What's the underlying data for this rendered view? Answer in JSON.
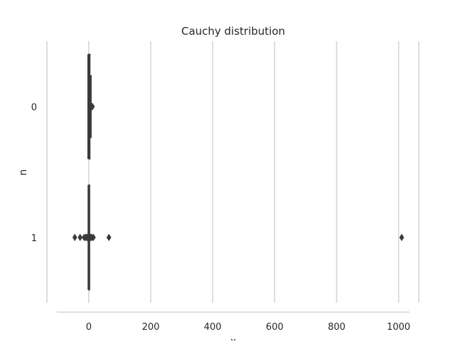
{
  "chart_data": {
    "type": "boxplot",
    "orientation": "horizontal",
    "title": "Cauchy distribution",
    "xlabel": "x",
    "ylabel": "n",
    "xlim": [
      -135,
      1065
    ],
    "xticks": [
      0,
      200,
      400,
      600,
      800,
      1000
    ],
    "xtick_labels": [
      "0",
      "200",
      "400",
      "600",
      "800",
      "1000"
    ],
    "categories": [
      "0",
      "1"
    ],
    "grid": "vertical",
    "colors": {
      "grid": "#d3d3d3",
      "axis": "#cccccc",
      "box": "#3a3a3a",
      "text": "#262626"
    },
    "boxes": [
      {
        "category": "0",
        "whisker_low": -1.5,
        "q1": 0.3,
        "median": 1.2,
        "q3": 2.5,
        "whisker_high": 6.5,
        "outliers": [
          10,
          12
        ]
      },
      {
        "category": "1",
        "whisker_low": -0.8,
        "q1": -0.6,
        "median": 0,
        "q3": 0.6,
        "whisker_high": 0.8,
        "outliers": [
          -45,
          -28,
          -15,
          -10,
          -7,
          -5,
          -3,
          3,
          5,
          7,
          10,
          15,
          65,
          1010
        ]
      }
    ]
  }
}
